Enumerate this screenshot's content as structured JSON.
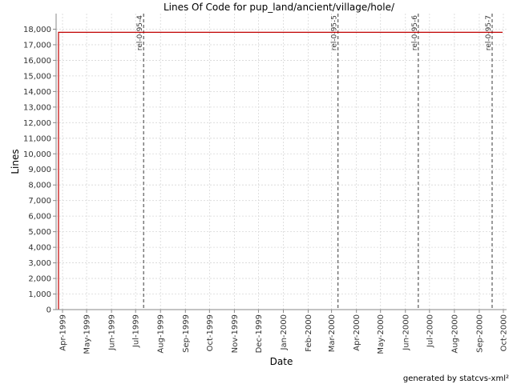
{
  "footer": "generated by statcvs-xml²",
  "chart_data": {
    "type": "line",
    "title": "Lines Of Code for pup_land/ancient/village/hole/",
    "xlabel": "Date",
    "ylabel": "Lines",
    "ylim": [
      0,
      19000
    ],
    "y_ticks": [
      0,
      1000,
      2000,
      3000,
      4000,
      5000,
      6000,
      7000,
      8000,
      9000,
      10000,
      11000,
      12000,
      13000,
      14000,
      15000,
      16000,
      17000,
      18000
    ],
    "y_tick_labels": [
      "0",
      "1,000",
      "2,000",
      "3,000",
      "4,000",
      "5,000",
      "6,000",
      "7,000",
      "8,000",
      "9,000",
      "10,000",
      "11,000",
      "12,000",
      "13,000",
      "14,000",
      "15,000",
      "16,000",
      "17,000",
      "18,000"
    ],
    "xlim": [
      "1999-03-24",
      "2000-10-05"
    ],
    "x_ticks": [
      "1999-04-01",
      "1999-05-01",
      "1999-06-01",
      "1999-07-01",
      "1999-08-01",
      "1999-09-01",
      "1999-10-01",
      "1999-11-01",
      "1999-12-01",
      "2000-01-01",
      "2000-02-01",
      "2000-03-01",
      "2000-04-01",
      "2000-05-01",
      "2000-06-01",
      "2000-07-01",
      "2000-08-01",
      "2000-09-01",
      "2000-10-01"
    ],
    "x_tick_labels": [
      "Apr-1999",
      "May-1999",
      "Jun-1999",
      "Jul-1999",
      "Aug-1999",
      "Sep-1999",
      "Oct-1999",
      "Nov-1999",
      "Dec-1999",
      "Jan-2000",
      "Feb-2000",
      "Mar-2000",
      "Apr-2000",
      "May-2000",
      "Jun-2000",
      "Jul-2000",
      "Aug-2000",
      "Sep-2000",
      "Oct-2000"
    ],
    "grid": true,
    "series": [
      {
        "color": "#c00000",
        "x": [
          "1999-03-27",
          "1999-03-27",
          "2000-09-30"
        ],
        "y": [
          0,
          17800,
          17800
        ]
      }
    ],
    "markers": [
      {
        "label": "rel-0-95-4",
        "x": "1999-07-11"
      },
      {
        "label": "rel-0-95-5",
        "x": "2000-03-09"
      },
      {
        "label": "rel-0-95-6",
        "x": "2000-06-17"
      },
      {
        "label": "rel-0-95-7",
        "x": "2000-09-17"
      }
    ]
  }
}
